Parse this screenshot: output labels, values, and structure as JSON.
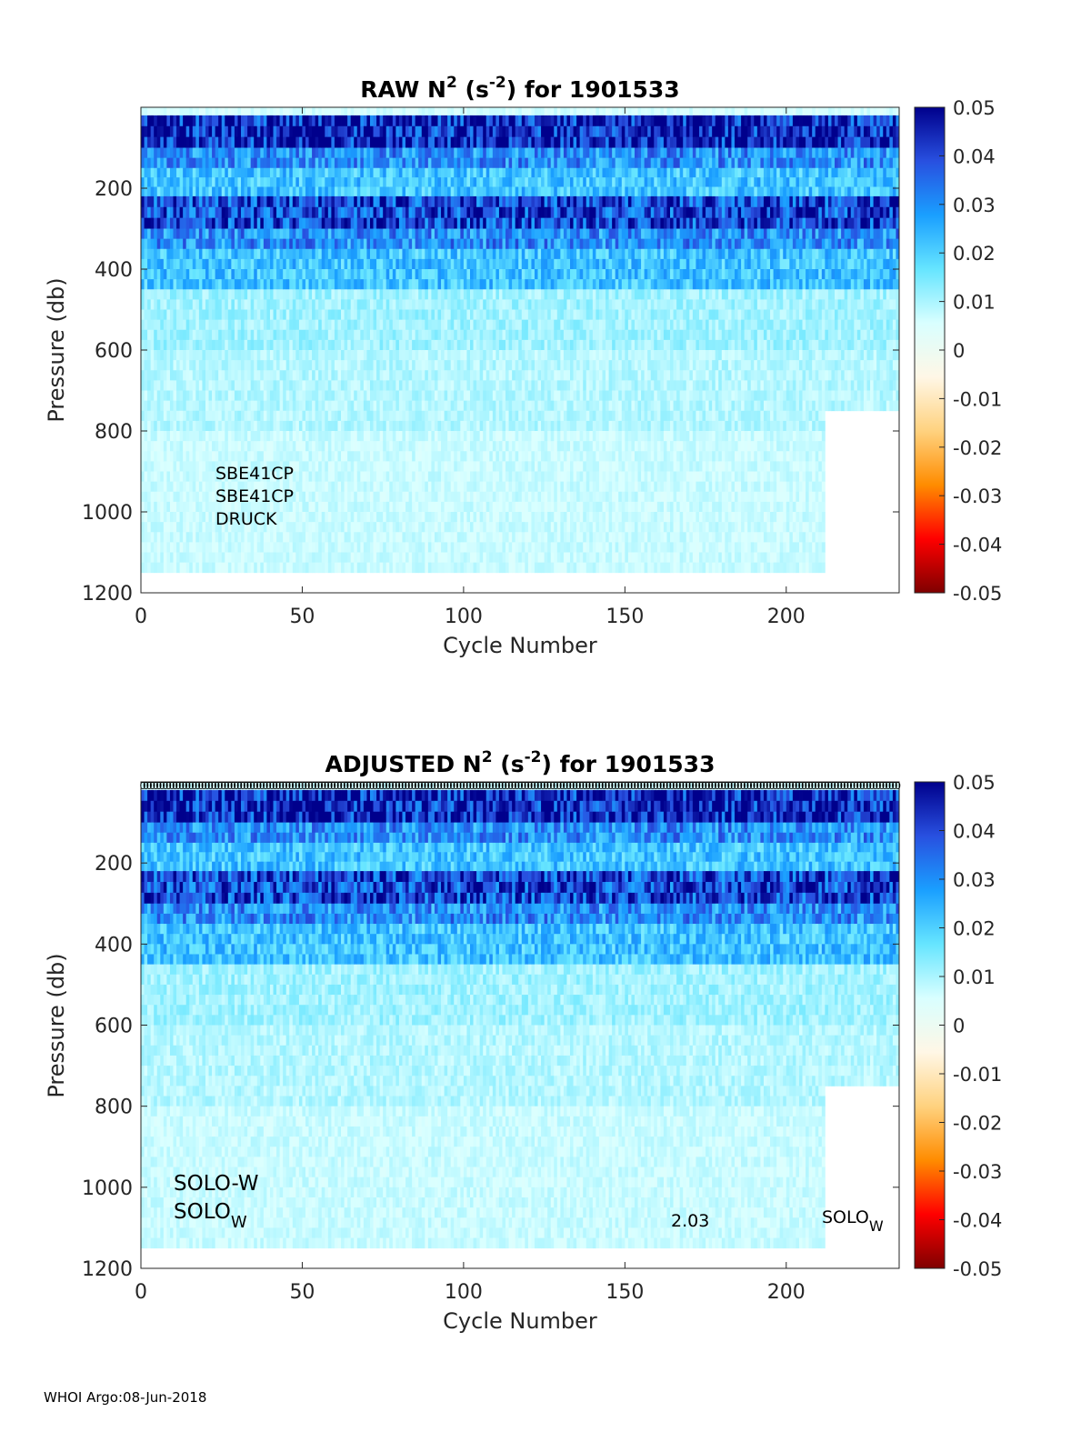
{
  "footer": "WHOI Argo:08-Jun-2018",
  "colorbar": {
    "ticks": [
      "0.05",
      "0.04",
      "0.03",
      "0.02",
      "0.01",
      "0",
      "-0.01",
      "-0.02",
      "-0.03",
      "-0.04",
      "-0.05"
    ],
    "range": [
      -0.05,
      0.05
    ],
    "colormap_stops": [
      "#7f0000",
      "#ff0000",
      "#ff8c00",
      "#ffd27f",
      "#fff7e6",
      "#d9ffff",
      "#66e5ff",
      "#1a9fff",
      "#2850e0",
      "#00008c"
    ]
  },
  "chart_data": [
    {
      "type": "heatmap",
      "title_main": "RAW N",
      "title_sup1": "2",
      "title_units_open": " (s",
      "title_sup2": "-2",
      "title_units_close": ") for 1901533",
      "xlabel": "Cycle Number",
      "ylabel": "Pressure (db)",
      "xticks": [
        "0",
        "50",
        "100",
        "150",
        "200"
      ],
      "yticks": [
        "200",
        "400",
        "600",
        "800",
        "1000",
        "1200"
      ],
      "xlim": [
        0,
        235
      ],
      "ylim": [
        1200,
        0
      ],
      "n_cycles": 235,
      "annotations": [
        "SBE41CP",
        "SBE41CP",
        "DRUCK"
      ],
      "depth_profile": [
        {
          "p_top": 0,
          "p_bot": 20,
          "value": 0.006
        },
        {
          "p_top": 20,
          "p_bot": 100,
          "value": 0.045
        },
        {
          "p_top": 100,
          "p_bot": 150,
          "value": 0.03
        },
        {
          "p_top": 150,
          "p_bot": 220,
          "value": 0.022
        },
        {
          "p_top": 220,
          "p_bot": 300,
          "value": 0.04
        },
        {
          "p_top": 300,
          "p_bot": 350,
          "value": 0.03
        },
        {
          "p_top": 350,
          "p_bot": 450,
          "value": 0.022
        },
        {
          "p_top": 450,
          "p_bot": 600,
          "value": 0.011
        },
        {
          "p_top": 600,
          "p_bot": 800,
          "value": 0.009
        },
        {
          "p_top": 800,
          "p_bot": 1150,
          "value": 0.007
        }
      ],
      "coverage": {
        "max_pressure_early": 1150,
        "max_pressure_late": 750,
        "late_from_cycle": 212
      }
    },
    {
      "type": "heatmap",
      "title_main": "ADJUSTED N",
      "title_sup1": "2",
      "title_units_open": " (s",
      "title_sup2": "-2",
      "title_units_close": ") for 1901533",
      "xlabel": "Cycle Number",
      "ylabel": "Pressure (db)",
      "xticks": [
        "0",
        "50",
        "100",
        "150",
        "200"
      ],
      "yticks": [
        "200",
        "400",
        "600",
        "800",
        "1000",
        "1200"
      ],
      "xlim": [
        0,
        235
      ],
      "ylim": [
        1200,
        0
      ],
      "n_cycles": 235,
      "annotations": [
        "SOLO-W",
        "SOLO",
        "W",
        "2.03",
        "SOLO",
        "W"
      ],
      "depth_profile": [
        {
          "p_top": 0,
          "p_bot": 20,
          "value": 0.006
        },
        {
          "p_top": 20,
          "p_bot": 100,
          "value": 0.045
        },
        {
          "p_top": 100,
          "p_bot": 150,
          "value": 0.03
        },
        {
          "p_top": 150,
          "p_bot": 220,
          "value": 0.022
        },
        {
          "p_top": 220,
          "p_bot": 300,
          "value": 0.04
        },
        {
          "p_top": 300,
          "p_bot": 350,
          "value": 0.03
        },
        {
          "p_top": 350,
          "p_bot": 450,
          "value": 0.022
        },
        {
          "p_top": 450,
          "p_bot": 600,
          "value": 0.011
        },
        {
          "p_top": 600,
          "p_bot": 800,
          "value": 0.009
        },
        {
          "p_top": 800,
          "p_bot": 1150,
          "value": 0.007
        }
      ],
      "coverage": {
        "max_pressure_early": 1150,
        "max_pressure_late": 750,
        "late_from_cycle": 212
      },
      "top_marker_glyph": "0"
    }
  ]
}
